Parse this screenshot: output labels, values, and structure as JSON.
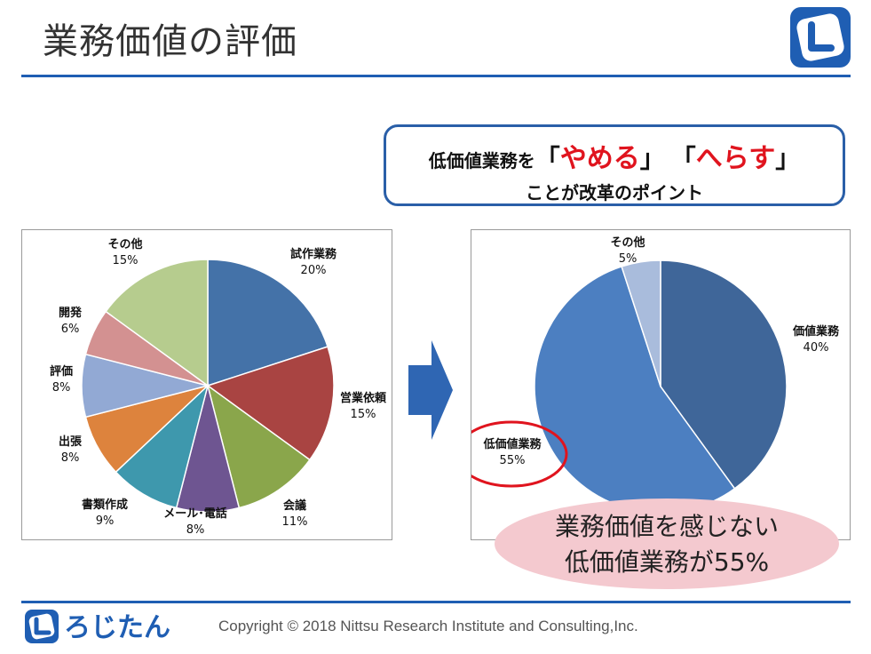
{
  "header": {
    "title": "業務価値の評価"
  },
  "callout": {
    "line1_prefix": "低価値業務を",
    "open_bracket": "「",
    "quit_word": "やめる",
    "close_bracket": "」",
    "reduce_word": "へらす",
    "line2": "ことが改革のポイント"
  },
  "chart_data": [
    {
      "type": "pie",
      "categories": [
        "試作業務",
        "営業依頼",
        "会議",
        "メール･電話",
        "書類作成",
        "出張",
        "評価",
        "開発",
        "その他"
      ],
      "values": [
        20,
        15,
        11,
        8,
        9,
        8,
        8,
        6,
        15
      ],
      "labels": [
        "20%",
        "15%",
        "11%",
        "8%",
        "9%",
        "8%",
        "8%",
        "6%",
        "15%"
      ],
      "colors": [
        "#4472a8",
        "#a94442",
        "#8aa64b",
        "#6e5591",
        "#3e98ad",
        "#dd833d",
        "#92a9d4",
        "#d39191",
        "#b6cc8e"
      ]
    },
    {
      "type": "pie",
      "categories": [
        "価値業務",
        "低価値業務",
        "その他"
      ],
      "values": [
        40,
        55,
        5
      ],
      "labels": [
        "40%",
        "55%",
        "5%"
      ],
      "colors": [
        "#3f6699",
        "#4c7fc1",
        "#a9bcdc"
      ]
    }
  ],
  "summary": {
    "line1": "業務価値を感じない",
    "line2": "低価値業務が55%"
  },
  "footer": {
    "brand": "ろじたん",
    "copyright": "Copyright © 2018 Nittsu Research Institute and Consulting,Inc."
  }
}
